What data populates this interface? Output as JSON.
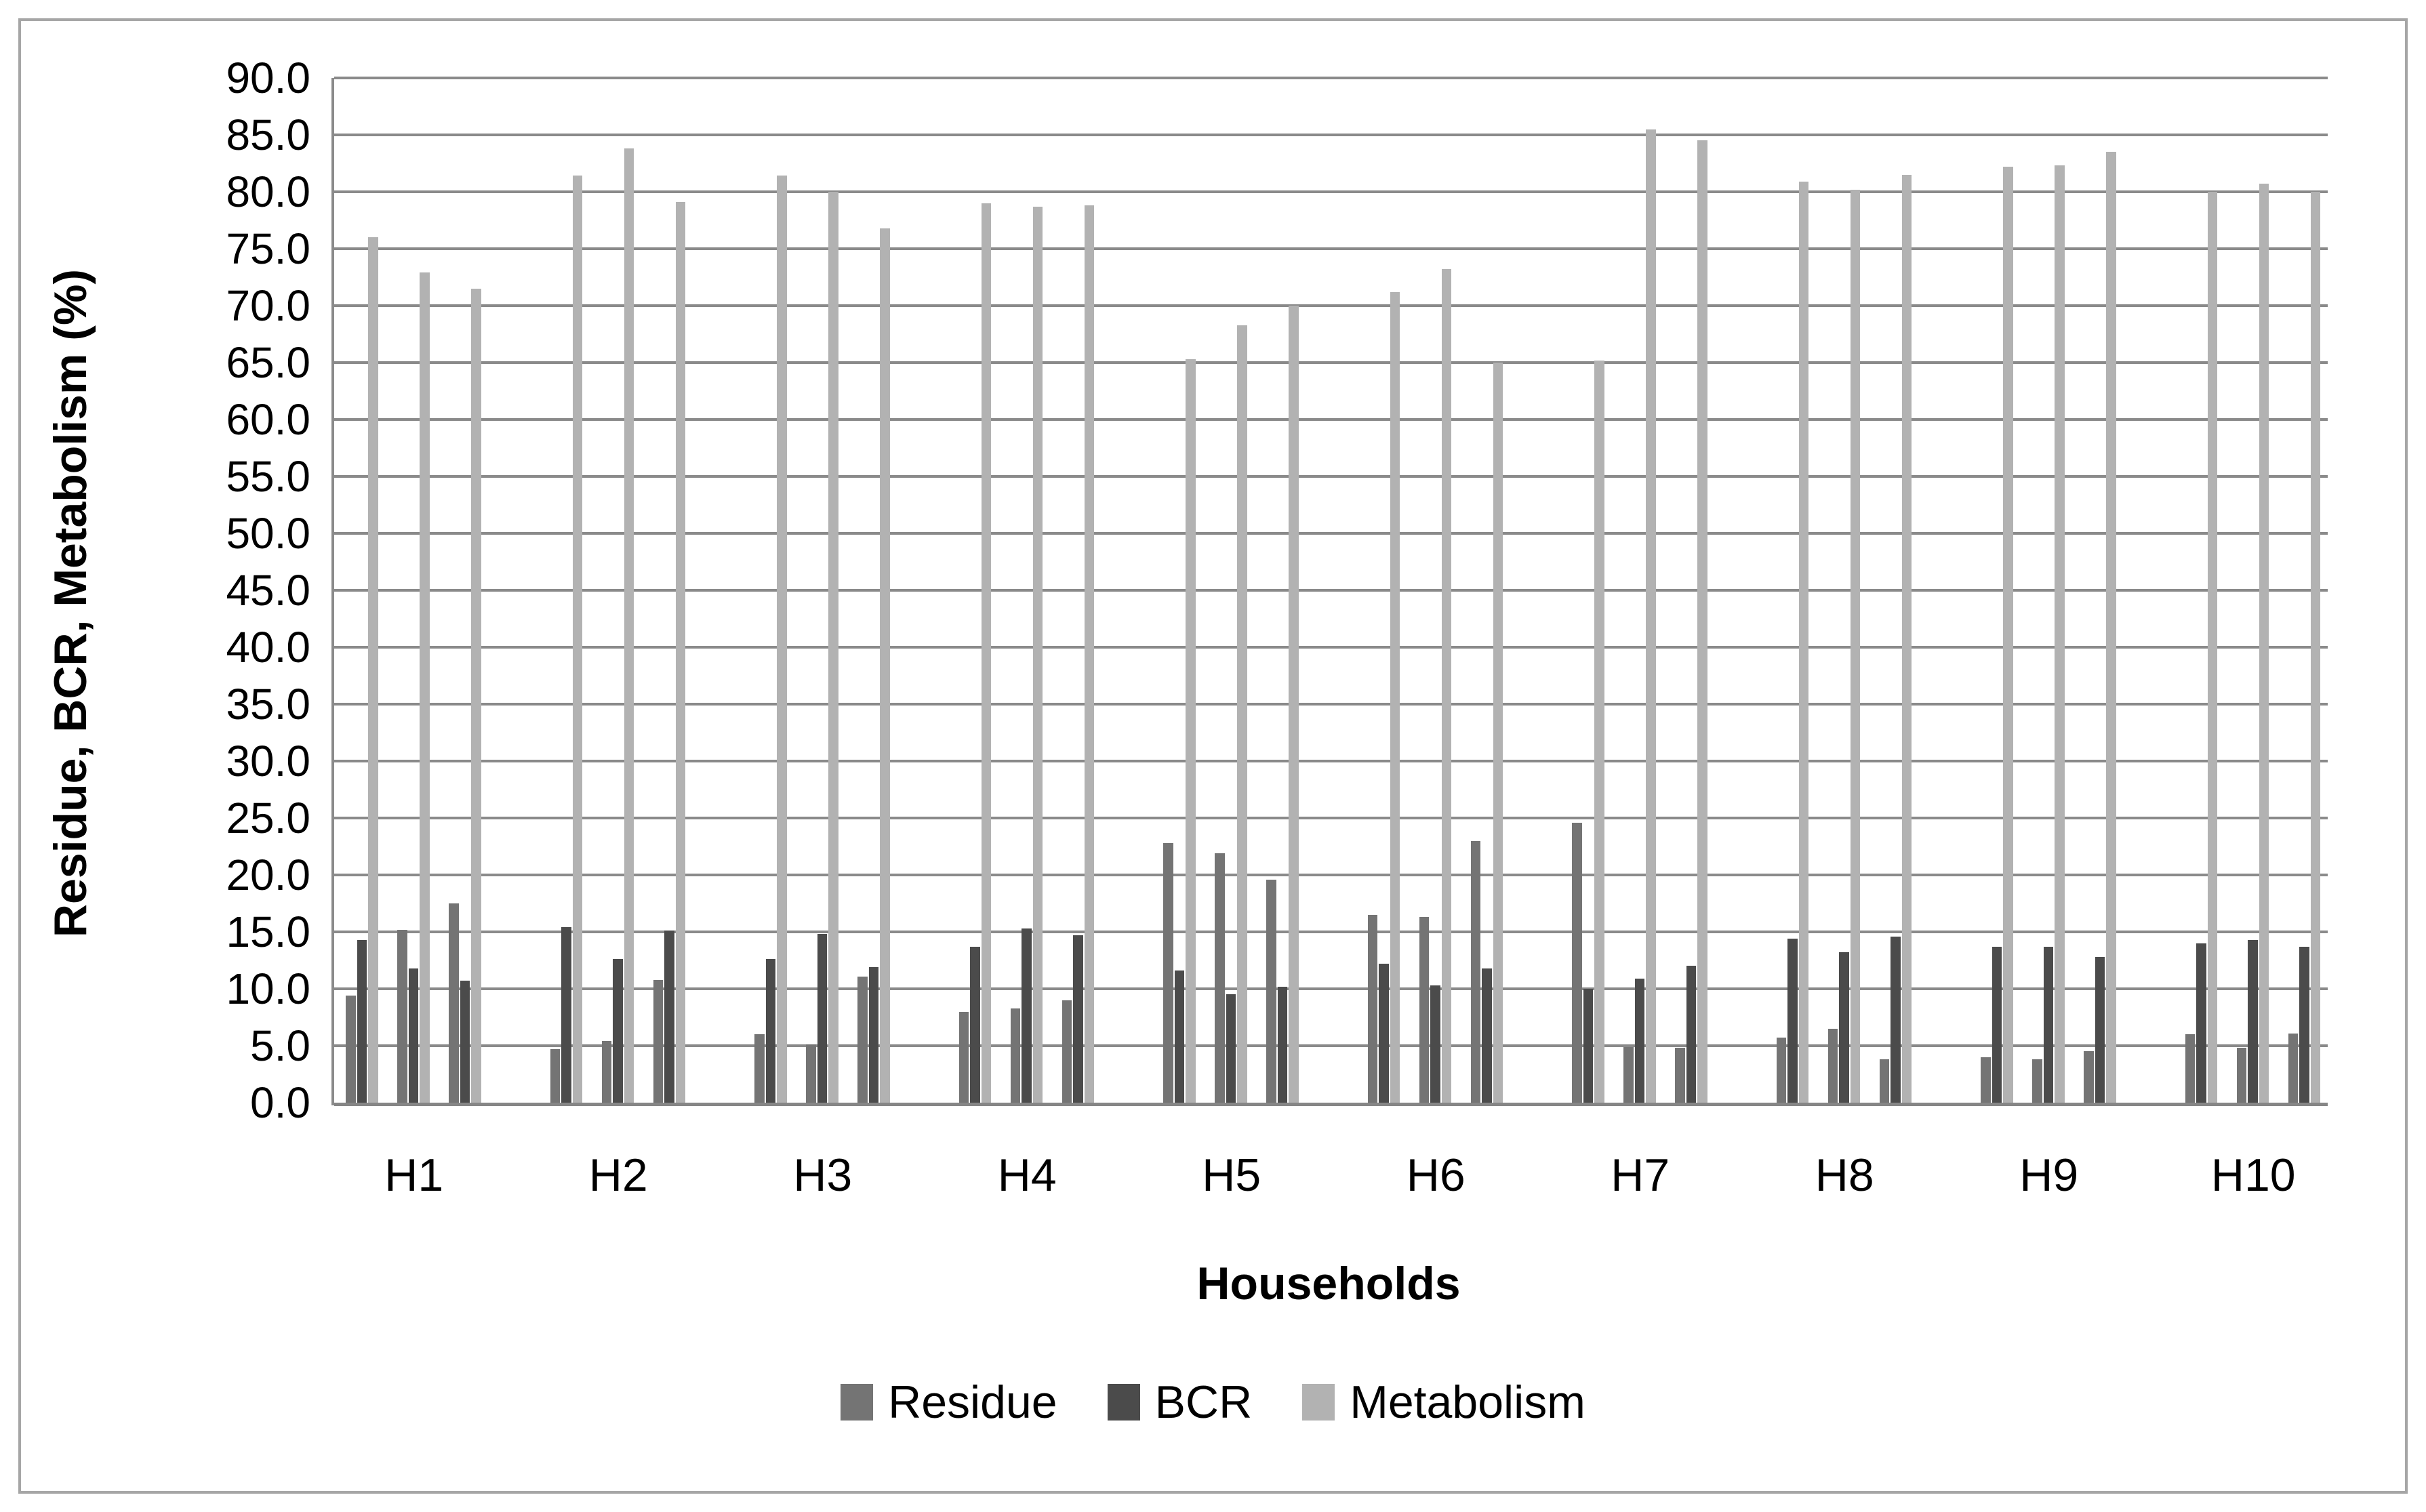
{
  "chart_data": {
    "type": "bar",
    "title": "",
    "xlabel": "Households",
    "ylabel": "Residue, BCR, Metabolism (%)",
    "categories": [
      "H1",
      "H2",
      "H3",
      "H4",
      "H5",
      "H6",
      "H7",
      "H8",
      "H9",
      "H10"
    ],
    "bars_per_category": 3,
    "ylim": [
      0,
      90
    ],
    "ytick_step": 5,
    "ytick_decimals": 1,
    "grid": "horizontal",
    "gridline_color": "#8a8a8a",
    "axis_line_color": "#868686",
    "frame_border_color": "#a6a6a6",
    "legend_position": "bottom",
    "series": [
      {
        "name": "Residue",
        "color": "#747474",
        "values": [
          [
            9.4,
            15.2,
            17.5
          ],
          [
            4.7,
            5.4,
            10.8
          ],
          [
            6.0,
            5.1,
            11.1
          ],
          [
            8.0,
            8.3,
            9.0
          ],
          [
            22.8,
            21.9,
            19.6
          ],
          [
            16.5,
            16.3,
            23.0
          ],
          [
            24.6,
            4.9,
            4.8
          ],
          [
            5.7,
            6.5,
            3.8
          ],
          [
            4.0,
            3.8,
            4.5
          ],
          [
            6.0,
            4.8,
            6.1
          ]
        ]
      },
      {
        "name": "BCR",
        "color": "#4b4b4b",
        "values": [
          [
            14.3,
            11.8,
            10.7
          ],
          [
            15.4,
            12.6,
            15.1
          ],
          [
            12.6,
            14.8,
            11.9
          ],
          [
            13.7,
            15.3,
            14.7
          ],
          [
            11.6,
            9.5,
            10.2
          ],
          [
            12.2,
            10.3,
            11.8
          ],
          [
            10.0,
            10.9,
            12.0
          ],
          [
            14.4,
            13.2,
            14.6
          ],
          [
            13.7,
            13.7,
            12.8
          ],
          [
            14.0,
            14.3,
            13.7
          ]
        ]
      },
      {
        "name": "Metabolism",
        "color": "#b2b2b2",
        "values": [
          [
            76.0,
            72.9,
            71.5
          ],
          [
            81.4,
            83.8,
            79.1
          ],
          [
            81.4,
            80.0,
            76.8
          ],
          [
            79.0,
            78.7,
            78.8
          ],
          [
            65.3,
            68.3,
            70.0
          ],
          [
            71.2,
            73.2,
            65.0
          ],
          [
            65.2,
            85.5,
            84.5
          ],
          [
            80.9,
            80.2,
            81.5
          ],
          [
            82.2,
            82.3,
            83.5
          ],
          [
            80.0,
            80.7,
            80.0
          ]
        ]
      }
    ]
  }
}
